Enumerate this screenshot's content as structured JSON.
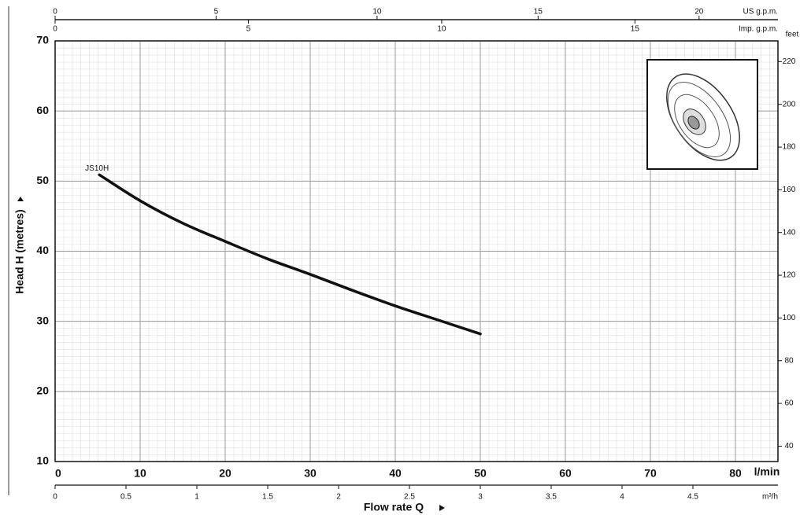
{
  "chart_data": {
    "type": "line",
    "y_label": "Head H (metres)",
    "x_label": "Flow rate Q",
    "x_unit": "l/min",
    "y2_label": "feet",
    "x": [
      5.2,
      10,
      15,
      20,
      25,
      30,
      35,
      40,
      45,
      50
    ],
    "series": [
      {
        "name": "JS10H",
        "color": "#111111",
        "values": [
          50.9,
          47.2,
          44,
          41.4,
          38.9,
          36.7,
          34.4,
          32.2,
          30.2,
          28.2
        ]
      }
    ],
    "xlim": [
      0,
      85
    ],
    "xticks": [
      0,
      10,
      20,
      30,
      40,
      50,
      60,
      70,
      80
    ],
    "ylim": [
      10,
      70
    ],
    "yticks": [
      10,
      20,
      30,
      40,
      50,
      60,
      70
    ],
    "y2lim": [
      32.8,
      229.7
    ],
    "y2ticks": [
      40,
      60,
      80,
      100,
      120,
      140,
      160,
      180,
      200,
      220
    ],
    "secondary_x_axes": [
      {
        "label": "US g.p.m.",
        "position": "top",
        "lim": [
          0,
          22.45
        ],
        "ticks": [
          0,
          5,
          10,
          15,
          20
        ]
      },
      {
        "label": "Imp. g.p.m.",
        "position": "top",
        "lim": [
          0,
          18.7
        ],
        "ticks": [
          0,
          5,
          10,
          15
        ]
      },
      {
        "label": "m³/h",
        "position": "bottom",
        "lim": [
          0,
          5.1
        ],
        "ticks": [
          0,
          0.5,
          1,
          1.5,
          2,
          2.5,
          3,
          3.5,
          4,
          4.5
        ]
      }
    ],
    "grid": true
  }
}
